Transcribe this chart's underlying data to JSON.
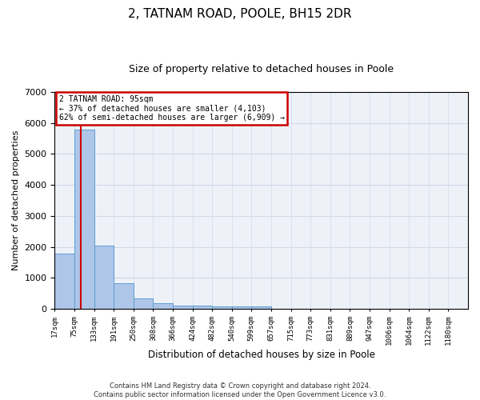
{
  "title": "2, TATNAM ROAD, POOLE, BH15 2DR",
  "subtitle": "Size of property relative to detached houses in Poole",
  "xlabel": "Distribution of detached houses by size in Poole",
  "ylabel": "Number of detached properties",
  "categories": [
    "17sqm",
    "75sqm",
    "133sqm",
    "191sqm",
    "250sqm",
    "308sqm",
    "366sqm",
    "424sqm",
    "482sqm",
    "540sqm",
    "599sqm",
    "657sqm",
    "715sqm",
    "773sqm",
    "831sqm",
    "889sqm",
    "947sqm",
    "1006sqm",
    "1064sqm",
    "1122sqm",
    "1180sqm"
  ],
  "values": [
    1780,
    5780,
    2050,
    820,
    340,
    190,
    115,
    110,
    95,
    80,
    75,
    0,
    0,
    0,
    0,
    0,
    0,
    0,
    0,
    0,
    0
  ],
  "bar_color": "#aec6e8",
  "bar_edge_color": "#5a9fd4",
  "vline_color": "#cc0000",
  "annotation_text": "2 TATNAM ROAD: 95sqm\n← 37% of detached houses are smaller (4,103)\n62% of semi-detached houses are larger (6,909) →",
  "annotation_box_color": "#cc0000",
  "ylim": [
    0,
    7000
  ],
  "yticks": [
    0,
    1000,
    2000,
    3000,
    4000,
    5000,
    6000,
    7000
  ],
  "grid_color": "#d0d8e8",
  "bg_color": "#eef2f8",
  "footer_line1": "Contains HM Land Registry data © Crown copyright and database right 2024.",
  "footer_line2": "Contains public sector information licensed under the Open Government Licence v3.0.",
  "title_fontsize": 11,
  "subtitle_fontsize": 9,
  "bin_width": 58,
  "vline_x": 95
}
